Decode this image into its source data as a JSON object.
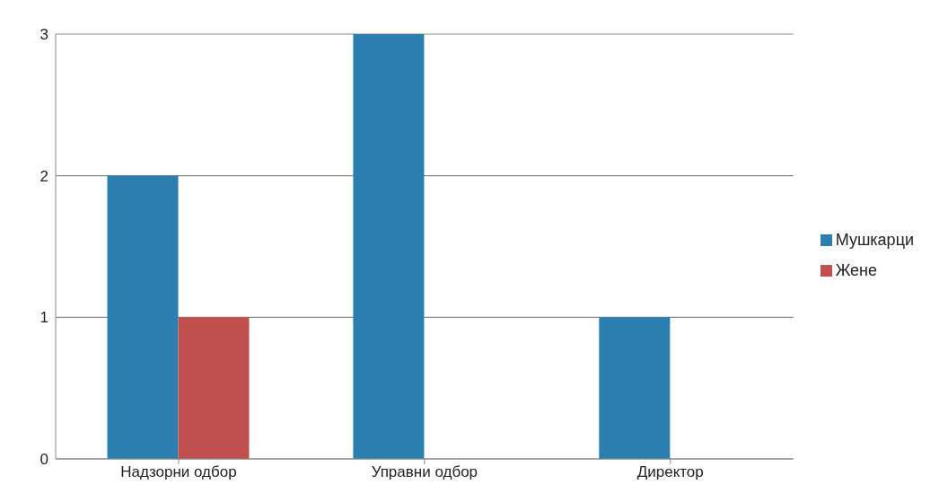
{
  "chart_data": {
    "type": "bar",
    "categories": [
      "Надзорни одбор",
      "Управни одбор",
      "Директор"
    ],
    "series": [
      {
        "name": "Мушкарци",
        "color": "#2a7fb0",
        "values": [
          2,
          3,
          1
        ]
      },
      {
        "name": "Жене",
        "color": "#c0504d",
        "values": [
          1,
          0,
          0
        ]
      }
    ],
    "ylim": [
      0,
      3
    ],
    "yticks": [
      0,
      1,
      2,
      3
    ],
    "grid": "y",
    "legend": "right"
  }
}
